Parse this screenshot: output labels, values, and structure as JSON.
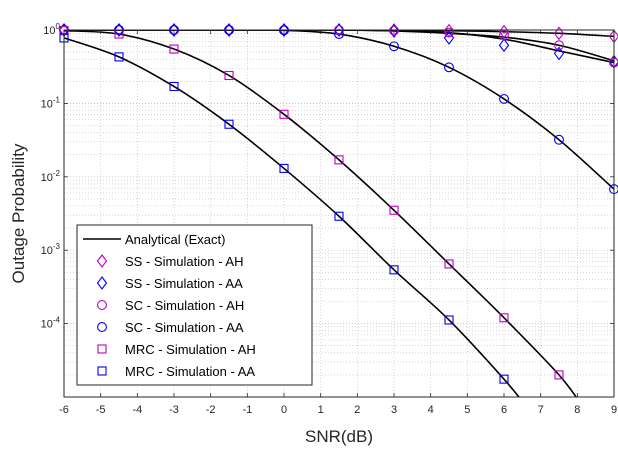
{
  "chart_data": {
    "type": "line",
    "xlabel": "SNR(dB)",
    "ylabel": "Outage Probability",
    "xlim": [
      -6,
      9
    ],
    "ylim": [
      1e-05,
      1.0
    ],
    "yscale": "log",
    "grid": "on (major and minor, dotted)",
    "legend_position": "bottom-left",
    "x_ticks": [
      "-6",
      "-5",
      "-4",
      "-3",
      "-2",
      "-1",
      "0",
      "1",
      "2",
      "3",
      "4",
      "5",
      "6",
      "7",
      "8",
      "9"
    ],
    "y_ticks": [
      {
        "base": "10",
        "exp": "0",
        "value": 1.0
      },
      {
        "base": "10",
        "exp": "-1",
        "value": 0.1
      },
      {
        "base": "10",
        "exp": "-2",
        "value": 0.01
      },
      {
        "base": "10",
        "exp": "-3",
        "value": 0.001
      },
      {
        "base": "10",
        "exp": "-4",
        "value": 0.0001
      }
    ],
    "legend": [
      {
        "label": "Analytical (Exact)",
        "marker": "line",
        "color": "#000000"
      },
      {
        "label": "SS - Simulation - AH",
        "marker": "diamond",
        "color": "#bf00bf"
      },
      {
        "label": "SS - Simulation - AA",
        "marker": "diamond",
        "color": "#0000ff"
      },
      {
        "label": "SC - Simulation - AH",
        "marker": "circle",
        "color": "#bf00bf"
      },
      {
        "label": "SC - Simulation - AA",
        "marker": "circle",
        "color": "#0000ff"
      },
      {
        "label": "MRC - Simulation - AH",
        "marker": "square",
        "color": "#bf00bf"
      },
      {
        "label": "MRC - Simulation - AA",
        "marker": "square",
        "color": "#0000ff"
      }
    ],
    "analytical_curves": [
      {
        "x": [
          -6,
          -4.5,
          -3,
          -1.5,
          0,
          1.5,
          3,
          4.5,
          6,
          7.5,
          9
        ],
        "y": [
          1.0,
          1.0,
          1.0,
          1.0,
          1.0,
          1.0,
          1.0,
          0.98,
          0.95,
          0.9,
          0.82
        ]
      },
      {
        "x": [
          -6,
          -4.5,
          -3,
          -1.5,
          0,
          1.5,
          3,
          4.5,
          6,
          7.5,
          9
        ],
        "y": [
          1.0,
          1.0,
          1.0,
          1.0,
          1.0,
          1.0,
          0.97,
          0.9,
          0.8,
          0.62,
          0.38
        ]
      },
      {
        "x": [
          -6,
          -4.5,
          -3,
          -1.5,
          0,
          1.5,
          3,
          4.5,
          6,
          7.5,
          9
        ],
        "y": [
          1.0,
          1.0,
          1.0,
          1.0,
          1.0,
          1.0,
          0.98,
          0.92,
          0.75,
          0.52,
          0.36
        ]
      },
      {
        "x": [
          -6,
          -4.5,
          -3,
          -1.5,
          0,
          1.5,
          3,
          4.5,
          6,
          7.5,
          9
        ],
        "y": [
          1.0,
          1.0,
          1.0,
          1.0,
          0.99,
          0.88,
          0.6,
          0.31,
          0.115,
          0.032,
          0.0068
        ]
      },
      {
        "x": [
          -6,
          -4.5,
          -3,
          -1.5,
          0,
          1.5,
          3,
          4.5,
          6,
          7.5,
          8.2
        ],
        "y": [
          0.98,
          0.88,
          0.55,
          0.24,
          0.071,
          0.017,
          0.0035,
          0.00065,
          0.00012,
          2e-05,
          6.8e-06
        ]
      },
      {
        "x": [
          -6,
          -4.5,
          -3,
          -1.5,
          0,
          1.5,
          3,
          4.5,
          6,
          6.6
        ],
        "y": [
          0.78,
          0.43,
          0.17,
          0.052,
          0.013,
          0.0029,
          0.00054,
          0.000112,
          1.75e-05,
          7.5e-06
        ]
      }
    ],
    "series": [
      {
        "name": "SS - Simulation - AH",
        "x": [
          -6,
          -4.5,
          -3,
          -1.5,
          0,
          1.5,
          3,
          4.5,
          6,
          7.5,
          9
        ],
        "y": [
          1.0,
          1.0,
          1.0,
          1.0,
          1.0,
          1.0,
          1.0,
          0.98,
          0.95,
          0.9,
          0.82
        ]
      },
      {
        "name": "SS - Simulation - AA",
        "x": [
          -6,
          -4.5,
          -3,
          -1.5,
          0,
          1.5,
          3,
          4.5,
          6,
          7.5,
          9
        ],
        "y": [
          1.0,
          1.0,
          1.0,
          1.0,
          1.0,
          1.0,
          0.97,
          0.78,
          0.62,
          0.48,
          0.37
        ]
      },
      {
        "name": "SC - Simulation - AH",
        "x": [
          -6,
          -4.5,
          -3,
          -1.5,
          0,
          1.5,
          3,
          4.5,
          6,
          7.5,
          9
        ],
        "y": [
          1.0,
          1.0,
          1.0,
          1.0,
          1.0,
          1.0,
          0.98,
          0.92,
          0.85,
          0.62,
          0.36
        ]
      },
      {
        "name": "SC - Simulation - AA",
        "x": [
          -6,
          -4.5,
          -3,
          -1.5,
          0,
          1.5,
          3,
          4.5,
          6,
          7.5,
          9
        ],
        "y": [
          1.0,
          1.0,
          1.0,
          1.0,
          0.99,
          0.88,
          0.6,
          0.31,
          0.115,
          0.032,
          0.0068
        ]
      },
      {
        "name": "MRC - Simulation - AH",
        "x": [
          -6,
          -4.5,
          -3,
          -1.5,
          0,
          1.5,
          3,
          4.5,
          6,
          7.5
        ],
        "y": [
          0.98,
          0.88,
          0.55,
          0.24,
          0.071,
          0.017,
          0.0035,
          0.00065,
          0.00012,
          2e-05
        ]
      },
      {
        "name": "MRC - Simulation - AA",
        "x": [
          -6,
          -4.5,
          -3,
          -1.5,
          0,
          1.5,
          3,
          4.5,
          6
        ],
        "y": [
          0.78,
          0.43,
          0.17,
          0.052,
          0.013,
          0.0029,
          0.00054,
          0.000112,
          1.75e-05
        ]
      }
    ]
  }
}
